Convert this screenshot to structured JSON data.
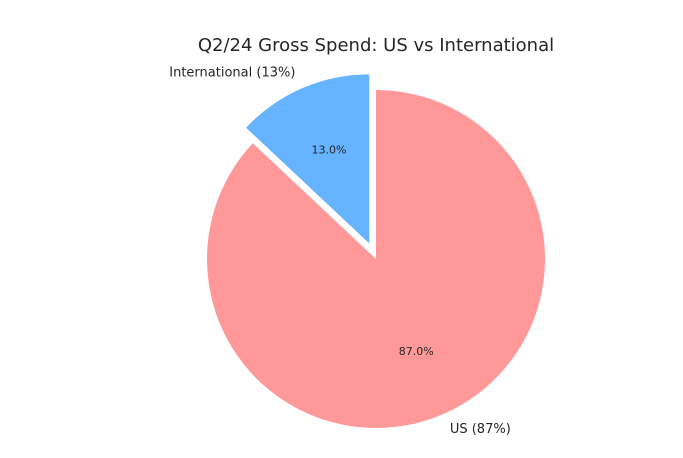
{
  "chart_data": {
    "type": "pie",
    "title": "Q2/24 Gross Spend: US vs International",
    "slices": [
      {
        "name": "International",
        "label": "International (13%)",
        "value": 13.0,
        "pct_label": "13.0%",
        "color": "#66b3ff",
        "exploded": true
      },
      {
        "name": "US",
        "label": "US (87%)",
        "value": 87.0,
        "pct_label": "87.0%",
        "color": "#ff9999",
        "exploded": false
      }
    ],
    "start_angle_deg": 90,
    "direction": "counterclockwise",
    "legend": "none"
  }
}
